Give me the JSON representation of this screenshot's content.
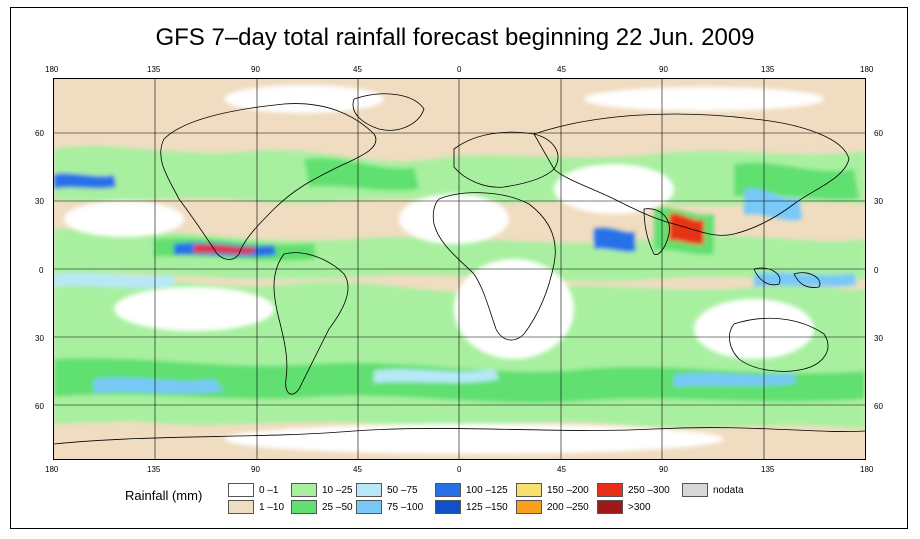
{
  "title": "GFS 7–day total rainfall forecast beginning 22 Jun. 2009",
  "axes": {
    "top_lon_labels": [
      "180",
      "135",
      "90",
      "45",
      "0",
      "45",
      "90",
      "135",
      "180"
    ],
    "bottom_lon_labels": [
      "180",
      "135",
      "90",
      "45",
      "0",
      "45",
      "90",
      "135",
      "180"
    ],
    "left_lat_labels": [
      "60",
      "30",
      "0",
      "30",
      "60"
    ],
    "right_lat_labels": [
      "60",
      "30",
      "0",
      "30",
      "60"
    ]
  },
  "legend": {
    "title": "Rainfall (mm)",
    "items": [
      {
        "label": "0 –1",
        "color": "#ffffff"
      },
      {
        "label": "1 –10",
        "color": "#f0dcc0"
      },
      {
        "label": "10 –25",
        "color": "#a8f0a0"
      },
      {
        "label": "25 –50",
        "color": "#60e070"
      },
      {
        "label": "50 –75",
        "color": "#b8e8f8"
      },
      {
        "label": "75 –100",
        "color": "#78c8f8"
      },
      {
        "label": "100 –125",
        "color": "#2870e8"
      },
      {
        "label": "125 –150",
        "color": "#1050c8"
      },
      {
        "label": "150 –200",
        "color": "#f8e070"
      },
      {
        "label": "200 –250",
        "color": "#f8a020"
      },
      {
        "label": "250 –300",
        "color": "#e83018"
      },
      {
        "label": ">300",
        "color": "#a01818"
      },
      {
        "label": "nodata",
        "color": "#d8d8d8"
      }
    ]
  },
  "colors": {
    "ocean_base": "#ffffff",
    "land_outline": "#000000",
    "grid": "#000000"
  }
}
